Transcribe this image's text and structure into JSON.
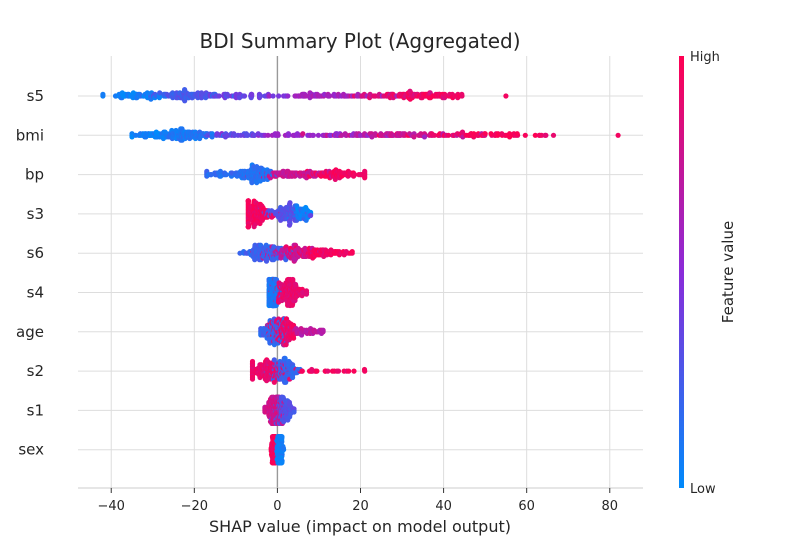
{
  "chart_data": {
    "type": "scatter",
    "title": "BDI  Summary Plot (Aggregated)",
    "xlabel": "SHAP value (impact on model output)",
    "xlim": [
      -48,
      88
    ],
    "xticks": [
      -40,
      -20,
      0,
      20,
      40,
      60,
      80
    ],
    "grid": true,
    "colorbar": {
      "label": "Feature value",
      "high_label": "High",
      "low_label": "Low",
      "low_color": "#008afb",
      "high_color": "#ff0052"
    },
    "features": [
      {
        "name": "s5",
        "min": -42,
        "max": 55,
        "modes": [
          {
            "center": -34,
            "spread": 3,
            "weight": 0.18,
            "color": 0.05
          },
          {
            "center": -22,
            "spread": 4,
            "weight": 0.24,
            "color": 0.25
          },
          {
            "center": -8,
            "spread": 5,
            "weight": 0.1,
            "color": 0.4
          },
          {
            "center": 12,
            "spread": 6,
            "weight": 0.14,
            "color": 0.6
          },
          {
            "center": 28,
            "spread": 5,
            "weight": 0.16,
            "color": 0.85
          },
          {
            "center": 38,
            "spread": 4,
            "weight": 0.18,
            "color": 0.95
          }
        ]
      },
      {
        "name": "bmi",
        "min": -35,
        "max": 82,
        "modes": [
          {
            "center": -30,
            "spread": 3,
            "weight": 0.1,
            "color": 0.05
          },
          {
            "center": -22,
            "spread": 3,
            "weight": 0.32,
            "color": 0.1
          },
          {
            "center": -12,
            "spread": 4,
            "weight": 0.1,
            "color": 0.35
          },
          {
            "center": 10,
            "spread": 8,
            "weight": 0.14,
            "color": 0.55
          },
          {
            "center": 28,
            "spread": 8,
            "weight": 0.18,
            "color": 0.75
          },
          {
            "center": 50,
            "spread": 10,
            "weight": 0.16,
            "color": 0.95
          }
        ]
      },
      {
        "name": "bp",
        "min": -17,
        "max": 21,
        "modes": [
          {
            "center": -12,
            "spread": 3,
            "weight": 0.12,
            "color": 0.15
          },
          {
            "center": -5,
            "spread": 2,
            "weight": 0.34,
            "color": 0.12
          },
          {
            "center": 4,
            "spread": 4,
            "weight": 0.24,
            "color": 0.75
          },
          {
            "center": 14,
            "spread": 4,
            "weight": 0.3,
            "color": 0.95
          }
        ]
      },
      {
        "name": "s3",
        "min": -7,
        "max": 8,
        "modes": [
          {
            "center": -5,
            "spread": 1.5,
            "weight": 0.45,
            "color": 0.95
          },
          {
            "center": 2,
            "spread": 2,
            "weight": 0.4,
            "color": 0.3
          },
          {
            "center": 6,
            "spread": 1.2,
            "weight": 0.15,
            "color": 0.05
          }
        ]
      },
      {
        "name": "s6",
        "min": -9,
        "max": 18,
        "modes": [
          {
            "center": -3,
            "spread": 2.5,
            "weight": 0.4,
            "color": 0.2
          },
          {
            "center": 3,
            "spread": 3,
            "weight": 0.35,
            "color": 0.75
          },
          {
            "center": 10,
            "spread": 4,
            "weight": 0.25,
            "color": 0.95
          }
        ]
      },
      {
        "name": "s4",
        "min": -2,
        "max": 7,
        "modes": [
          {
            "center": -1,
            "spread": 0.8,
            "weight": 0.5,
            "color": 0.1
          },
          {
            "center": 3,
            "spread": 1.5,
            "weight": 0.5,
            "color": 0.9
          }
        ]
      },
      {
        "name": "age",
        "min": -4,
        "max": 11,
        "modes": [
          {
            "center": -1,
            "spread": 1.5,
            "weight": 0.45,
            "color": 0.2
          },
          {
            "center": 1.5,
            "spread": 1.5,
            "weight": 0.45,
            "color": 0.9
          },
          {
            "center": 7,
            "spread": 2.5,
            "weight": 0.1,
            "color": 0.7
          }
        ]
      },
      {
        "name": "s2",
        "min": -6,
        "max": 21,
        "modes": [
          {
            "center": -2,
            "spread": 2,
            "weight": 0.5,
            "color": 0.9
          },
          {
            "center": 2,
            "spread": 1.5,
            "weight": 0.42,
            "color": 0.2
          },
          {
            "center": 10,
            "spread": 5,
            "weight": 0.08,
            "color": 0.95
          }
        ]
      },
      {
        "name": "s1",
        "min": -3,
        "max": 4,
        "modes": [
          {
            "center": -0.5,
            "spread": 1,
            "weight": 0.55,
            "color": 0.8
          },
          {
            "center": 1.5,
            "spread": 1,
            "weight": 0.45,
            "color": 0.3
          }
        ]
      },
      {
        "name": "sex",
        "min": -1.5,
        "max": 1.5,
        "modes": [
          {
            "center": -0.8,
            "spread": 0.3,
            "weight": 0.5,
            "color": 0.95
          },
          {
            "center": 0.6,
            "spread": 0.3,
            "weight": 0.5,
            "color": 0.05
          }
        ]
      }
    ]
  }
}
